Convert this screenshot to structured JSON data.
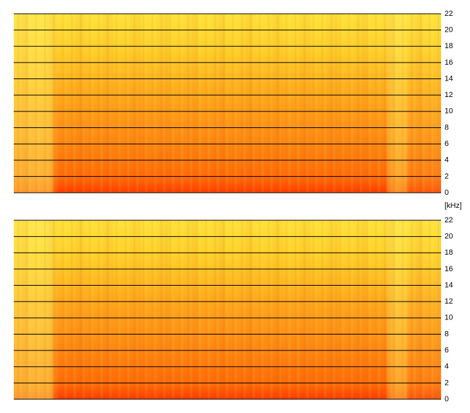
{
  "chart_data": [
    {
      "type": "spectrogram",
      "ylim": [
        0,
        22
      ],
      "yticks": [
        0,
        2,
        4,
        6,
        8,
        10,
        12,
        14,
        16,
        18,
        20,
        22
      ],
      "grid": true,
      "y_unit": "[kHz]"
    },
    {
      "type": "spectrogram",
      "ylim": [
        0,
        22
      ],
      "yticks": [
        0,
        2,
        4,
        6,
        8,
        10,
        12,
        14,
        16,
        18,
        20,
        22
      ],
      "grid": true
    }
  ]
}
